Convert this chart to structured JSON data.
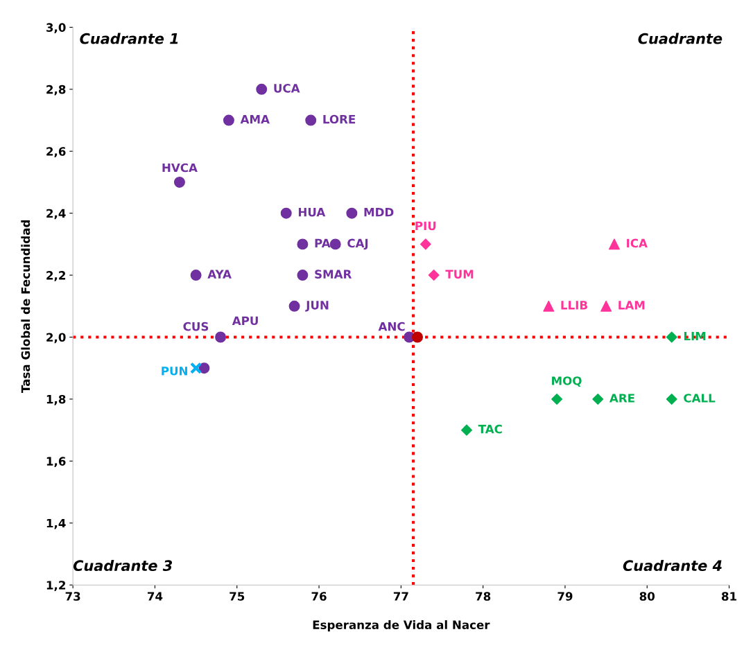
{
  "chart_data": {
    "type": "scatter",
    "xlabel": "Esperanza de Vida al Nacer",
    "ylabel": "Tasa Global de Fecundidad",
    "xlim": [
      73,
      81
    ],
    "xticks": [
      73,
      74,
      75,
      76,
      77,
      78,
      79,
      80,
      81
    ],
    "ylim": [
      1.2,
      3.0
    ],
    "yticks": [
      {
        "value": 1.2,
        "label": "1,2"
      },
      {
        "value": 1.4,
        "label": "1,4"
      },
      {
        "value": 1.6,
        "label": "1,6"
      },
      {
        "value": 1.8,
        "label": "1,8"
      },
      {
        "value": 2.0,
        "label": "2,0"
      },
      {
        "value": 2.2,
        "label": "2,2"
      },
      {
        "value": 2.4,
        "label": "2,4"
      },
      {
        "value": 2.6,
        "label": "2,6"
      },
      {
        "value": 2.8,
        "label": "2,8"
      },
      {
        "value": 3.0,
        "label": "3,0"
      }
    ],
    "grid": false,
    "legend": false,
    "series": [
      {
        "color": "#7030a0",
        "marker": "circle",
        "x": [
          75.3,
          74.9,
          75.9,
          74.3,
          75.6,
          76.4,
          75.8,
          76.2,
          74.5,
          75.8,
          75.7,
          74.8,
          74.6,
          77.1
        ],
        "values": [
          2.8,
          2.7,
          2.7,
          2.5,
          2.4,
          2.4,
          2.3,
          2.3,
          2.2,
          2.2,
          2.1,
          2.0,
          1.9,
          2.0
        ]
      },
      {
        "color": "#ff3399",
        "marker": "diamond",
        "x": [
          77.3,
          77.4
        ],
        "values": [
          2.3,
          2.2
        ]
      },
      {
        "color": "#ff3399",
        "marker": "triangle",
        "x": [
          79.6,
          78.8,
          79.5
        ],
        "values": [
          2.3,
          2.1,
          2.1
        ]
      },
      {
        "color": "#00b050",
        "marker": "diamond",
        "x": [
          80.3,
          78.9,
          79.4,
          80.3,
          77.8
        ],
        "values": [
          2.0,
          1.8,
          1.8,
          1.8,
          1.7
        ]
      },
      {
        "color": "#00b0f0",
        "marker": "cross",
        "x": [
          74.5
        ],
        "values": [
          1.9
        ]
      },
      {
        "color": "#c00000",
        "marker": "circle",
        "x": [
          77.2
        ],
        "values": [
          2.0
        ]
      }
    ],
    "ref_lines": [
      {
        "axis": "x",
        "value": 77.15,
        "color": "#ff0000",
        "line_style": "dotted"
      },
      {
        "axis": "y",
        "value": 2.0,
        "color": "#ff0000",
        "line_style": "dotted"
      }
    ],
    "annotations": [
      "Cuadrante 1",
      "Cuadrante",
      "Cuadrante 3",
      "Cuadrante 4",
      {
        "text": "UCA",
        "x": 75.3,
        "y": 2.8
      },
      {
        "text": "AMA",
        "x": 74.9,
        "y": 2.7
      },
      {
        "text": "LORE",
        "x": 75.9,
        "y": 2.7
      },
      {
        "text": "HVCA",
        "x": 74.3,
        "y": 2.5
      },
      {
        "text": "HUA",
        "x": 75.6,
        "y": 2.4
      },
      {
        "text": "MDD",
        "x": 76.4,
        "y": 2.4
      },
      {
        "text": "PA",
        "x": 75.8,
        "y": 2.3
      },
      {
        "text": "CAJ",
        "x": 76.2,
        "y": 2.3
      },
      {
        "text": "AYA",
        "x": 74.5,
        "y": 2.2
      },
      {
        "text": "SMAR",
        "x": 75.8,
        "y": 2.2
      },
      {
        "text": "JUN",
        "x": 75.7,
        "y": 2.1
      },
      {
        "text": "CUS",
        "x": 74.8,
        "y": 2.0
      },
      {
        "text": "APU",
        "x": 74.8,
        "y": 2.0
      },
      {
        "text": "ANC",
        "x": 77.1,
        "y": 2.0
      },
      {
        "text": "PUN",
        "x": 74.5,
        "y": 1.9
      },
      {
        "text": "PIU",
        "x": 77.3,
        "y": 2.3
      },
      {
        "text": "TUM",
        "x": 77.4,
        "y": 2.2
      },
      {
        "text": "ICA",
        "x": 79.6,
        "y": 2.3
      },
      {
        "text": "LLIB",
        "x": 78.8,
        "y": 2.1
      },
      {
        "text": "LAM",
        "x": 79.5,
        "y": 2.1
      },
      {
        "text": "LIM",
        "x": 80.3,
        "y": 2.0
      },
      {
        "text": "MOQ",
        "x": 78.9,
        "y": 1.8
      },
      {
        "text": "ARE",
        "x": 79.4,
        "y": 1.8
      },
      {
        "text": "CALL",
        "x": 80.3,
        "y": 1.8
      },
      {
        "text": "TAC",
        "x": 77.8,
        "y": 1.7
      }
    ]
  }
}
